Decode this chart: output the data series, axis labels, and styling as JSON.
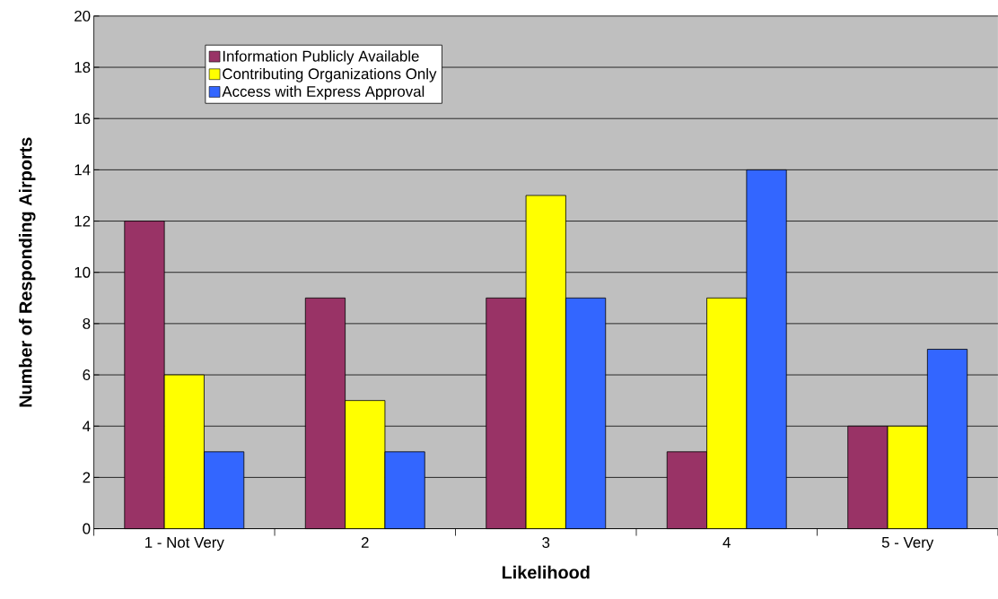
{
  "chart_data": {
    "type": "bar",
    "xlabel": "Likelihood",
    "ylabel": "Number of Responding Airports",
    "categories": [
      "1 - Not Very",
      "2",
      "3",
      "4",
      "5 - Very"
    ],
    "series": [
      {
        "name": "Information Publicly Available",
        "color": "#993366",
        "values": [
          12,
          9,
          9,
          3,
          4
        ]
      },
      {
        "name": "Contributing Organizations Only",
        "color": "#ffff00",
        "values": [
          6,
          5,
          13,
          9,
          4
        ]
      },
      {
        "name": "Access with Express Approval",
        "color": "#3366ff",
        "values": [
          3,
          3,
          9,
          14,
          7
        ]
      }
    ],
    "ylim": [
      0,
      20
    ],
    "yticks": [
      0,
      2,
      4,
      6,
      8,
      10,
      12,
      14,
      16,
      18,
      20
    ],
    "grid": "y",
    "legend": "top left"
  }
}
